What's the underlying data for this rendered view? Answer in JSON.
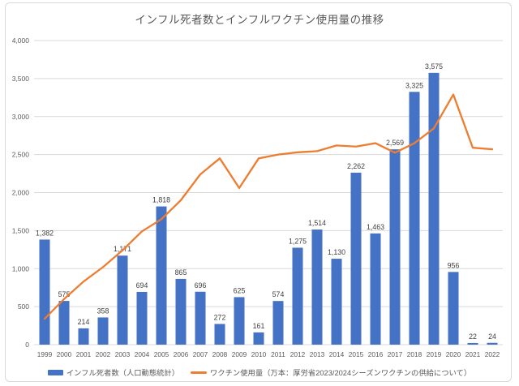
{
  "title": "インフル死者数とインフルワクチン使用量の推移",
  "colors": {
    "bar": "#4472C4",
    "line": "#ED7D31",
    "grid": "#D9D9D9",
    "axis_text": "#595959",
    "data_label": "#404040",
    "frame_border": "#D9D9D9",
    "title_text": "#595959"
  },
  "legend": {
    "deaths_label": "インフル死者数（人口動態統計）",
    "vaccine_label": "ワクチン使用量（万本：厚労省2023/2024シーズンワクチンの供給について）"
  },
  "chart_data": {
    "type": "bar",
    "subtype": "combo-bar-line",
    "title": "インフル死者数とインフルワクチン使用量の推移",
    "categories": [
      "1999",
      "2000",
      "2001",
      "2002",
      "2003",
      "2004",
      "2005",
      "2006",
      "2007",
      "2008",
      "2009",
      "2010",
      "2011",
      "2012",
      "2013",
      "2014",
      "2015",
      "2016",
      "2017",
      "2018",
      "2019",
      "2020",
      "2021",
      "2022"
    ],
    "series": [
      {
        "name": "インフル死者数（人口動態統計）",
        "type": "bar",
        "color": "#4472C4",
        "values": [
          1382,
          575,
          214,
          358,
          1171,
          694,
          1818,
          865,
          696,
          272,
          625,
          161,
          574,
          1275,
          1514,
          1130,
          2262,
          1463,
          2569,
          3325,
          3575,
          956,
          22,
          24
        ],
        "data_labels": [
          "1,382",
          "575",
          "214",
          "358",
          "1,171",
          "694",
          "1,818",
          "865",
          "696",
          "272",
          "625",
          "161",
          "574",
          "1,275",
          "1,514",
          "1,130",
          "2,262",
          "1,463",
          "2,569",
          "3,325",
          "3,575",
          "956",
          "22",
          "24"
        ]
      },
      {
        "name": "ワクチン使用量（万本：厚労省2023/2024シーズンワクチンの供給について）",
        "type": "line",
        "color": "#ED7D31",
        "values": [
          340,
          600,
          830,
          1020,
          1240,
          1490,
          1650,
          1900,
          2240,
          2450,
          2060,
          2450,
          2500,
          2530,
          2545,
          2620,
          2605,
          2650,
          2525,
          2650,
          2845,
          3290,
          2590,
          2570
        ],
        "data_labels": null
      }
    ],
    "xlabel": "",
    "ylabel": "",
    "ylim": [
      0,
      4000
    ],
    "y_tick_step": 500,
    "y_tick_labels": [
      "0",
      "500",
      "1,000",
      "1,500",
      "2,000",
      "2,500",
      "3,000",
      "3,500",
      "4,000"
    ],
    "grid": true,
    "legend_position": "bottom"
  }
}
